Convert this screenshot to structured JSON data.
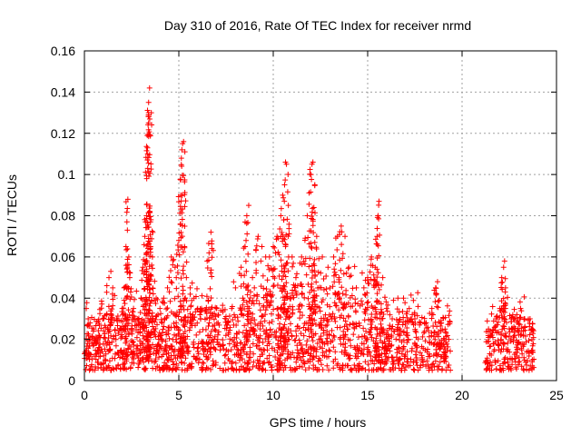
{
  "chart_data": {
    "type": "scatter",
    "title": "Day 310 of 2016, Rate Of TEC Index for receiver nrmd",
    "xlabel": "GPS time / hours",
    "ylabel": "ROTI / TECUs",
    "xlim": [
      0,
      25
    ],
    "ylim": [
      0,
      0.16
    ],
    "xticks": [
      0,
      5,
      10,
      15,
      20,
      25
    ],
    "yticks": [
      0,
      0.02,
      0.04,
      0.06,
      0.08,
      0.1,
      0.12,
      0.14,
      0.16
    ],
    "xtick_labels": [
      "0",
      "5",
      "10",
      "15",
      "20",
      "25"
    ],
    "ytick_labels": [
      "0",
      "0.02",
      "0.04",
      "0.06",
      "0.08",
      "0.1",
      "0.12",
      "0.14",
      "0.16"
    ],
    "grid": true,
    "legend": "none",
    "marker": "plus",
    "color": "#ff0000",
    "data_gaps_hours": [
      [
        19.4,
        21.2
      ],
      [
        23.8,
        25
      ]
    ],
    "series": [
      {
        "name": "",
        "points": [
          [
            0.1,
            0.035
          ],
          [
            0.2,
            0.03
          ],
          [
            0.3,
            0.028
          ],
          [
            0.5,
            0.025
          ],
          [
            0.8,
            0.022
          ],
          [
            1.0,
            0.03
          ],
          [
            1.3,
            0.05
          ],
          [
            1.4,
            0.053
          ],
          [
            1.5,
            0.045
          ],
          [
            1.7,
            0.03
          ],
          [
            2.0,
            0.035
          ],
          [
            2.1,
            0.045
          ],
          [
            2.2,
            0.065
          ],
          [
            2.25,
            0.077
          ],
          [
            2.3,
            0.088
          ],
          [
            2.35,
            0.06
          ],
          [
            2.4,
            0.05
          ],
          [
            2.6,
            0.035
          ],
          [
            2.8,
            0.03
          ],
          [
            3.0,
            0.04
          ],
          [
            3.1,
            0.055
          ],
          [
            3.2,
            0.07
          ],
          [
            3.3,
            0.08
          ],
          [
            3.3,
            0.098
          ],
          [
            3.35,
            0.103
          ],
          [
            3.35,
            0.11
          ],
          [
            3.4,
            0.125
          ],
          [
            3.4,
            0.13
          ],
          [
            3.4,
            0.135
          ],
          [
            3.45,
            0.142
          ],
          [
            3.5,
            0.077
          ],
          [
            3.6,
            0.06
          ],
          [
            3.8,
            0.04
          ],
          [
            4.0,
            0.035
          ],
          [
            4.2,
            0.04
          ],
          [
            4.4,
            0.045
          ],
          [
            4.6,
            0.06
          ],
          [
            4.8,
            0.055
          ],
          [
            5.0,
            0.068
          ],
          [
            5.1,
            0.09
          ],
          [
            5.15,
            0.104
          ],
          [
            5.2,
            0.115
          ],
          [
            5.25,
            0.116
          ],
          [
            5.3,
            0.065
          ],
          [
            5.4,
            0.05
          ],
          [
            5.6,
            0.045
          ],
          [
            5.8,
            0.04
          ],
          [
            6.0,
            0.035
          ],
          [
            6.2,
            0.035
          ],
          [
            6.5,
            0.058
          ],
          [
            6.6,
            0.062
          ],
          [
            6.7,
            0.072
          ],
          [
            7.0,
            0.035
          ],
          [
            7.5,
            0.03
          ],
          [
            7.8,
            0.035
          ],
          [
            8.0,
            0.045
          ],
          [
            8.3,
            0.055
          ],
          [
            8.5,
            0.065
          ],
          [
            8.6,
            0.08
          ],
          [
            8.7,
            0.085
          ],
          [
            8.9,
            0.05
          ],
          [
            9.0,
            0.045
          ],
          [
            9.2,
            0.07
          ],
          [
            9.4,
            0.065
          ],
          [
            9.6,
            0.06
          ],
          [
            9.8,
            0.06
          ],
          [
            10.0,
            0.065
          ],
          [
            10.2,
            0.07
          ],
          [
            10.4,
            0.08
          ],
          [
            10.5,
            0.09
          ],
          [
            10.6,
            0.095
          ],
          [
            10.65,
            0.106
          ],
          [
            10.7,
            0.105
          ],
          [
            10.8,
            0.085
          ],
          [
            11.0,
            0.06
          ],
          [
            11.2,
            0.05
          ],
          [
            11.5,
            0.06
          ],
          [
            11.8,
            0.08
          ],
          [
            12.0,
            0.1
          ],
          [
            12.05,
            0.105
          ],
          [
            12.1,
            0.106
          ],
          [
            12.2,
            0.095
          ],
          [
            12.3,
            0.07
          ],
          [
            12.6,
            0.06
          ],
          [
            12.9,
            0.055
          ],
          [
            13.2,
            0.06
          ],
          [
            13.4,
            0.07
          ],
          [
            13.6,
            0.075
          ],
          [
            13.8,
            0.07
          ],
          [
            14.0,
            0.055
          ],
          [
            14.4,
            0.045
          ],
          [
            14.8,
            0.045
          ],
          [
            15.0,
            0.05
          ],
          [
            15.2,
            0.06
          ],
          [
            15.4,
            0.055
          ],
          [
            15.5,
            0.07
          ],
          [
            15.55,
            0.08
          ],
          [
            15.6,
            0.087
          ],
          [
            15.8,
            0.05
          ],
          [
            16.0,
            0.035
          ],
          [
            16.3,
            0.03
          ],
          [
            16.6,
            0.04
          ],
          [
            16.9,
            0.04
          ],
          [
            17.2,
            0.035
          ],
          [
            17.5,
            0.03
          ],
          [
            17.8,
            0.028
          ],
          [
            18.1,
            0.028
          ],
          [
            18.4,
            0.035
          ],
          [
            18.6,
            0.045
          ],
          [
            18.7,
            0.048
          ],
          [
            18.9,
            0.028
          ],
          [
            19.1,
            0.025
          ],
          [
            19.3,
            0.02
          ],
          [
            21.4,
            0.025
          ],
          [
            21.8,
            0.03
          ],
          [
            22.0,
            0.035
          ],
          [
            22.1,
            0.05
          ],
          [
            22.2,
            0.055
          ],
          [
            22.25,
            0.058
          ],
          [
            22.3,
            0.045
          ],
          [
            22.6,
            0.03
          ],
          [
            22.9,
            0.032
          ],
          [
            23.1,
            0.035
          ],
          [
            23.3,
            0.03
          ],
          [
            23.6,
            0.03
          ],
          [
            23.7,
            0.025
          ]
        ]
      }
    ]
  }
}
